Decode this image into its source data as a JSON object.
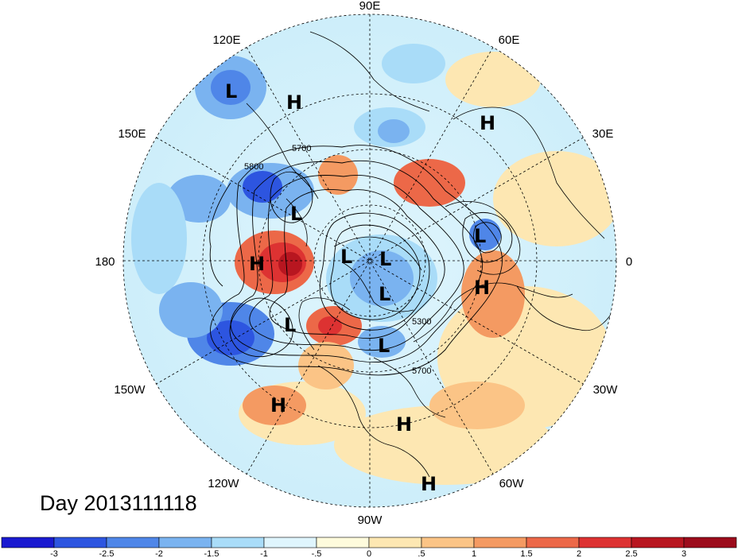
{
  "title": "Day 2013111118",
  "longitude_labels": [
    "90E",
    "60E",
    "30E",
    "0",
    "30W",
    "60W",
    "90W",
    "120W",
    "150W",
    "180",
    "150E",
    "120E"
  ],
  "contour_labels": [
    "5700",
    "5800",
    "5300",
    "5700"
  ],
  "centers": [
    {
      "type": "L"
    },
    {
      "type": "H"
    },
    {
      "type": "H"
    },
    {
      "type": "L"
    },
    {
      "type": "L"
    },
    {
      "type": "H"
    },
    {
      "type": "L"
    },
    {
      "type": "L"
    },
    {
      "type": "L"
    },
    {
      "type": "L"
    },
    {
      "type": "H"
    },
    {
      "type": "L"
    },
    {
      "type": "L"
    },
    {
      "type": "H"
    },
    {
      "type": "H"
    },
    {
      "type": "H"
    }
  ],
  "colorbar": {
    "ticks": [
      "-3",
      "-2.5",
      "-2",
      "-1.5",
      "-1",
      "-.5",
      "0",
      ".5",
      "1",
      "1.5",
      "2",
      "2.5",
      "3"
    ],
    "colors": [
      "#1a1ad0",
      "#2d55e0",
      "#4f86e8",
      "#7ab3f0",
      "#a9dcf8",
      "#dff5fd",
      "#fefbdc",
      "#fde7b2",
      "#fbc486",
      "#f49a62",
      "#ec6848",
      "#dd3232",
      "#b81620",
      "#9c0c1c"
    ]
  }
}
